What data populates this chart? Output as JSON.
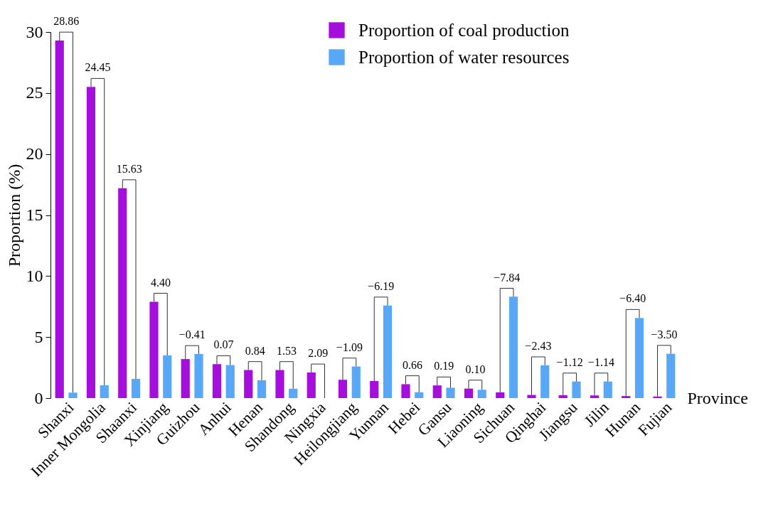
{
  "chart_data": {
    "type": "bar",
    "xlabel": "Province",
    "ylabel": "Proportion (%)",
    "categories": [
      "Shanxi",
      "Inner Mongolia",
      "Shaanxi",
      "Xinjiang",
      "Guizhou",
      "Anhui",
      "Henan",
      "Shandong",
      "Ningxia",
      "Heilongjiang",
      "Yunnan",
      "Hebei",
      "Gansu",
      "Liaoning",
      "Sichuan",
      "Qinghai",
      "Jiangsu",
      "Jilin",
      "Hunan",
      "Fujian"
    ],
    "series": [
      {
        "name": "Proportion of coal production",
        "color": "#a50fdc",
        "values": [
          29.3,
          25.5,
          17.2,
          7.9,
          3.2,
          2.78,
          2.3,
          2.3,
          2.1,
          1.5,
          1.4,
          1.14,
          1.04,
          0.78,
          0.47,
          0.26,
          0.24,
          0.22,
          0.17,
          0.13
        ]
      },
      {
        "name": "Proportion of water resources",
        "color": "#59a8f7",
        "values": [
          0.45,
          1.05,
          1.57,
          3.5,
          3.61,
          2.71,
          1.46,
          0.77,
          0,
          2.59,
          7.59,
          0.48,
          0.85,
          0.68,
          8.31,
          2.69,
          1.36,
          1.36,
          6.57,
          3.63
        ]
      }
    ],
    "ylim": [
      0,
      30
    ],
    "yticks": [
      0,
      5,
      10,
      15,
      20,
      25,
      30
    ],
    "grid": false,
    "legend": "top right",
    "annotations": [
      {
        "text": "28.86",
        "x": "Shanxi",
        "y": 0.45
      },
      {
        "text": "24.45",
        "x": "Inner Mongolia",
        "y": 1.05
      },
      {
        "text": "15.63",
        "x": "Shaanxi",
        "y": 1.57
      },
      {
        "text": "4.40",
        "x": "Xinjiang",
        "y": 3.5
      },
      {
        "text": "−0.41",
        "x": "Guizhou",
        "y": 3.61
      },
      {
        "text": "0.07",
        "x": "Anhui",
        "y": 2.71
      },
      {
        "text": "0.84",
        "x": "Henan",
        "y": 1.46
      },
      {
        "text": "1.53",
        "x": "Shandong",
        "y": 0.77
      },
      {
        "text": "2.09",
        "x": "Ningxia",
        "y": 0
      },
      {
        "text": "−1.09",
        "x": "Heilongjiang",
        "y": 2.59
      },
      {
        "text": "−6.19",
        "x": "Yunnan",
        "y": 7.59
      },
      {
        "text": "0.66",
        "x": "Hebei",
        "y": 0.48
      },
      {
        "text": "0.19",
        "x": "Gansu",
        "y": 0.85
      },
      {
        "text": "0.10",
        "x": "Liaoning",
        "y": 0.68
      },
      {
        "text": "−7.84",
        "x": "Sichuan",
        "y": 8.31
      },
      {
        "text": "−2.43",
        "x": "Qinghai",
        "y": 2.69
      },
      {
        "text": "−1.12",
        "x": "Jiangsu",
        "y": 1.36
      },
      {
        "text": "−1.14",
        "x": "Jilin",
        "y": 1.36
      },
      {
        "text": "−6.40",
        "x": "Hunan",
        "y": 6.57
      },
      {
        "text": "−3.50",
        "x": "Fujian",
        "y": 3.63
      }
    ]
  }
}
